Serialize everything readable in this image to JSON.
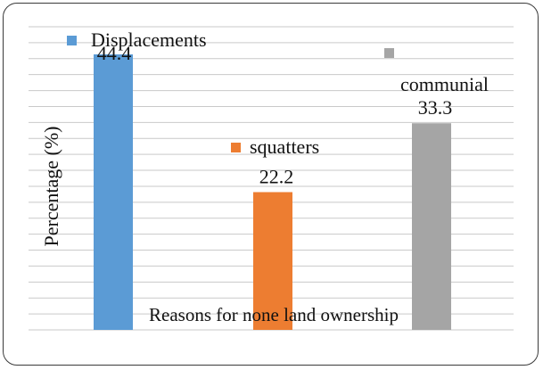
{
  "chart_data": {
    "type": "bar",
    "categories": [
      "Displacements",
      "squatters",
      "communial"
    ],
    "values": [
      44.4,
      22.2,
      33.3
    ],
    "value_labels": [
      "44.4",
      "22.2",
      "33.3"
    ],
    "colors": [
      "#5b9bd5",
      "#ed7d31",
      "#a5a5a5"
    ],
    "title": "",
    "xlabel": "Reasons for none land ownership",
    "ylabel": "Percentage (%)",
    "ylim": [
      0,
      50
    ],
    "grid": true,
    "legend": "inline-above-bars"
  }
}
